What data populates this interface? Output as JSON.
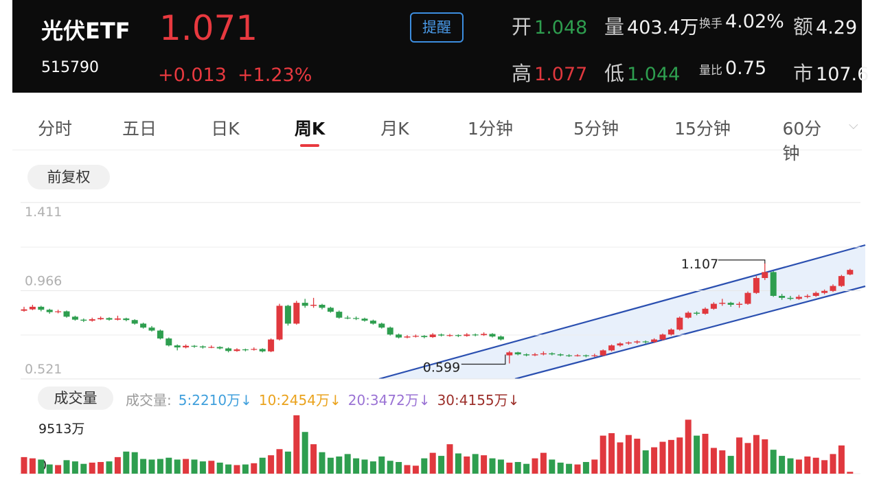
{
  "header": {
    "name": "光伏ETF",
    "price": "1.071",
    "code": "515790",
    "change": "+0.013",
    "change_pct": "+1.23%",
    "alert_button": "提醒",
    "stats": [
      {
        "label": "开",
        "value": "1.048",
        "tone": "down"
      },
      {
        "label": "量",
        "value": "403.4万",
        "tone": "neutral"
      },
      {
        "label": "换手",
        "value": "4.02%",
        "tone": "neutral",
        "small": true
      },
      {
        "label": "额",
        "value": "4.29",
        "tone": "neutral"
      },
      {
        "label": "高",
        "value": "1.077",
        "tone": "up"
      },
      {
        "label": "低",
        "value": "1.044",
        "tone": "down"
      },
      {
        "label": "量比",
        "value": "0.75",
        "tone": "neutral",
        "small": true
      },
      {
        "label": "市",
        "value": "107.6",
        "tone": "neutral"
      }
    ]
  },
  "tabs": {
    "items": [
      "分时",
      "五日",
      "日K",
      "周K",
      "月K",
      "1分钟",
      "5分钟",
      "15分钟",
      "60分钟"
    ],
    "active": 3
  },
  "adjust_button": "前复权",
  "chart_data": {
    "type": "candlestick",
    "up_color": "#e0383e",
    "down_color": "#2e9e4f",
    "ylim": [
      0.521,
      1.411
    ],
    "yticks": [
      1.411,
      0.966,
      0.521
    ],
    "annotations": [
      {
        "label": "1.107",
        "candle": 87
      },
      {
        "label": "0.599",
        "candle": 57
      }
    ],
    "candles": [
      [
        0.865,
        0.885,
        0.86,
        0.872
      ],
      [
        0.872,
        0.895,
        0.868,
        0.885
      ],
      [
        0.885,
        0.89,
        0.862,
        0.87
      ],
      [
        0.87,
        0.875,
        0.85,
        0.858
      ],
      [
        0.858,
        0.87,
        0.852,
        0.862
      ],
      [
        0.862,
        0.866,
        0.83,
        0.835
      ],
      [
        0.835,
        0.84,
        0.815,
        0.82
      ],
      [
        0.82,
        0.826,
        0.808,
        0.815
      ],
      [
        0.815,
        0.83,
        0.81,
        0.822
      ],
      [
        0.822,
        0.836,
        0.818,
        0.828
      ],
      [
        0.828,
        0.832,
        0.815,
        0.82
      ],
      [
        0.82,
        0.84,
        0.816,
        0.826
      ],
      [
        0.826,
        0.83,
        0.812,
        0.818
      ],
      [
        0.818,
        0.822,
        0.795,
        0.8
      ],
      [
        0.8,
        0.805,
        0.775,
        0.78
      ],
      [
        0.78,
        0.788,
        0.76,
        0.765
      ],
      [
        0.765,
        0.77,
        0.72,
        0.725
      ],
      [
        0.725,
        0.73,
        0.685,
        0.69
      ],
      [
        0.69,
        0.695,
        0.665,
        0.68
      ],
      [
        0.68,
        0.695,
        0.675,
        0.688
      ],
      [
        0.688,
        0.692,
        0.678,
        0.685
      ],
      [
        0.685,
        0.69,
        0.674,
        0.68
      ],
      [
        0.68,
        0.69,
        0.676,
        0.682
      ],
      [
        0.682,
        0.686,
        0.67,
        0.675
      ],
      [
        0.675,
        0.68,
        0.655,
        0.662
      ],
      [
        0.662,
        0.676,
        0.658,
        0.67
      ],
      [
        0.67,
        0.674,
        0.66,
        0.668
      ],
      [
        0.668,
        0.68,
        0.664,
        0.672
      ],
      [
        0.672,
        0.676,
        0.655,
        0.66
      ],
      [
        0.66,
        0.725,
        0.656,
        0.72
      ],
      [
        0.72,
        0.9,
        0.715,
        0.89
      ],
      [
        0.89,
        0.895,
        0.79,
        0.8
      ],
      [
        0.8,
        0.915,
        0.795,
        0.905
      ],
      [
        0.905,
        0.925,
        0.88,
        0.89
      ],
      [
        0.89,
        0.93,
        0.88,
        0.895
      ],
      [
        0.895,
        0.9,
        0.872,
        0.88
      ],
      [
        0.88,
        0.885,
        0.855,
        0.86
      ],
      [
        0.86,
        0.866,
        0.825,
        0.83
      ],
      [
        0.83,
        0.84,
        0.822,
        0.828
      ],
      [
        0.828,
        0.836,
        0.818,
        0.825
      ],
      [
        0.825,
        0.83,
        0.81,
        0.815
      ],
      [
        0.815,
        0.82,
        0.795,
        0.8
      ],
      [
        0.8,
        0.805,
        0.775,
        0.78
      ],
      [
        0.78,
        0.785,
        0.74,
        0.745
      ],
      [
        0.745,
        0.75,
        0.725,
        0.73
      ],
      [
        0.73,
        0.742,
        0.726,
        0.735
      ],
      [
        0.735,
        0.745,
        0.73,
        0.738
      ],
      [
        0.738,
        0.742,
        0.726,
        0.732
      ],
      [
        0.732,
        0.752,
        0.728,
        0.745
      ],
      [
        0.745,
        0.75,
        0.735,
        0.74
      ],
      [
        0.74,
        0.748,
        0.734,
        0.742
      ],
      [
        0.742,
        0.746,
        0.732,
        0.738
      ],
      [
        0.738,
        0.752,
        0.734,
        0.745
      ],
      [
        0.745,
        0.75,
        0.736,
        0.742
      ],
      [
        0.742,
        0.756,
        0.738,
        0.748
      ],
      [
        0.748,
        0.752,
        0.73,
        0.735
      ],
      [
        0.735,
        0.74,
        0.715,
        0.72
      ],
      [
        0.64,
        0.662,
        0.599,
        0.655
      ],
      [
        0.655,
        0.658,
        0.64,
        0.645
      ],
      [
        0.645,
        0.65,
        0.635,
        0.64
      ],
      [
        0.64,
        0.652,
        0.636,
        0.645
      ],
      [
        0.645,
        0.66,
        0.64,
        0.65
      ],
      [
        0.65,
        0.655,
        0.64,
        0.645
      ],
      [
        0.645,
        0.65,
        0.635,
        0.64
      ],
      [
        0.64,
        0.646,
        0.632,
        0.638
      ],
      [
        0.638,
        0.646,
        0.634,
        0.64
      ],
      [
        0.64,
        0.644,
        0.63,
        0.636
      ],
      [
        0.636,
        0.648,
        0.632,
        0.64
      ],
      [
        0.64,
        0.67,
        0.636,
        0.665
      ],
      [
        0.665,
        0.695,
        0.66,
        0.69
      ],
      [
        0.69,
        0.706,
        0.684,
        0.7
      ],
      [
        0.7,
        0.71,
        0.694,
        0.705
      ],
      [
        0.705,
        0.716,
        0.698,
        0.71
      ],
      [
        0.71,
        0.715,
        0.7,
        0.708
      ],
      [
        0.708,
        0.726,
        0.702,
        0.72
      ],
      [
        0.72,
        0.75,
        0.715,
        0.745
      ],
      [
        0.745,
        0.776,
        0.74,
        0.77
      ],
      [
        0.77,
        0.836,
        0.765,
        0.83
      ],
      [
        0.83,
        0.862,
        0.825,
        0.855
      ],
      [
        0.855,
        0.862,
        0.842,
        0.85
      ],
      [
        0.85,
        0.882,
        0.845,
        0.875
      ],
      [
        0.875,
        0.908,
        0.87,
        0.9
      ],
      [
        0.9,
        0.925,
        0.89,
        0.905
      ],
      [
        0.905,
        0.91,
        0.885,
        0.895
      ],
      [
        0.895,
        0.91,
        0.88,
        0.9
      ],
      [
        0.9,
        0.962,
        0.895,
        0.955
      ],
      [
        0.955,
        1.04,
        0.95,
        1.03
      ],
      [
        1.03,
        1.107,
        1.02,
        1.06
      ],
      [
        1.06,
        1.065,
        0.935,
        0.94
      ],
      [
        0.94,
        0.95,
        0.92,
        0.93
      ],
      [
        0.93,
        0.94,
        0.918,
        0.925
      ],
      [
        0.925,
        0.945,
        0.92,
        0.935
      ],
      [
        0.935,
        0.948,
        0.928,
        0.94
      ],
      [
        0.94,
        0.962,
        0.935,
        0.955
      ],
      [
        0.955,
        0.972,
        0.948,
        0.965
      ],
      [
        0.965,
        0.998,
        0.96,
        0.99
      ],
      [
        0.99,
        1.046,
        0.985,
        1.04
      ],
      [
        1.048,
        1.077,
        1.044,
        1.071
      ]
    ],
    "volume": {
      "button": "成交量",
      "label": "成交量:",
      "ma": [
        {
          "label": "5:2210万↓",
          "color": "#3f9fdc"
        },
        {
          "label": "10:2454万↓",
          "color": "#eaa21c"
        },
        {
          "label": "20:3472万↓",
          "color": "#9a72d4"
        },
        {
          "label": "30:4155万↓",
          "color": "#9c2f2a"
        }
      ],
      "ylim": [
        0,
        9513
      ],
      "yticks": [
        {
          "value": 9513,
          "label": "9513万"
        },
        0
      ],
      "values": [
        2700,
        2500,
        2300,
        1500,
        1400,
        2200,
        2000,
        1600,
        1800,
        1900,
        2000,
        2700,
        3600,
        3500,
        2400,
        2300,
        2400,
        2600,
        2300,
        2400,
        2300,
        2000,
        2100,
        1800,
        1500,
        1400,
        1500,
        1700,
        2600,
        3000,
        4000,
        3600,
        9513,
        6800,
        4800,
        3500,
        2600,
        2800,
        3200,
        2500,
        2300,
        2000,
        2800,
        2100,
        1900,
        1400,
        1300,
        2500,
        3400,
        2900,
        4800,
        3300,
        2800,
        3200,
        3000,
        2500,
        2300,
        1800,
        1900,
        1600,
        2500,
        3400,
        2300,
        1800,
        1600,
        1500,
        1900,
        2300,
        6200,
        6600,
        5100,
        6300,
        5700,
        3800,
        4300,
        5200,
        5500,
        5900,
        8800,
        6200,
        6500,
        4200,
        3800,
        2900,
        5900,
        5000,
        6300,
        5600,
        3900,
        2900,
        2500,
        2300,
        2800,
        2600,
        2200,
        3200,
        4600,
        300
      ]
    }
  }
}
